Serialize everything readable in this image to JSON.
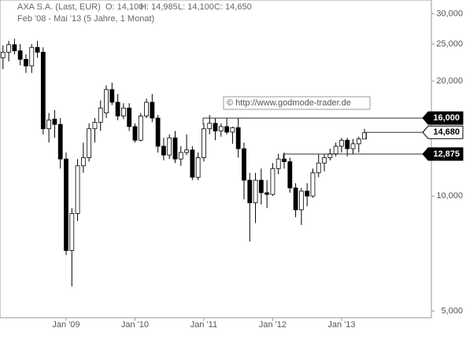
{
  "chart_data": {
    "type": "candlestick",
    "title": "AXA S.A. (Last, EUR)",
    "header_values": [
      "O: 14,100",
      "H: 14,985",
      "L: 14,100",
      "C: 14,650"
    ],
    "subtitle": "Feb '08 - Mai '13 (5 Jahre, 1 Monat)",
    "watermark": "© http://www.godmode-trader.de",
    "categories": [
      null,
      null,
      null,
      null,
      null,
      null,
      null,
      null,
      null,
      null,
      null,
      "Jan '09",
      null,
      null,
      null,
      null,
      null,
      null,
      null,
      null,
      null,
      null,
      null,
      "Jan '10",
      null,
      null,
      null,
      null,
      null,
      null,
      null,
      null,
      null,
      null,
      null,
      "Jan '11",
      null,
      null,
      null,
      null,
      null,
      null,
      null,
      null,
      null,
      null,
      null,
      "Jan '12",
      null,
      null,
      null,
      null,
      null,
      null,
      null,
      null,
      null,
      null,
      null,
      "Jan '13",
      null,
      null,
      null,
      null
    ],
    "open": [
      23000,
      23800,
      24900,
      24000,
      22800,
      21900,
      24500,
      23800,
      15000,
      15900,
      15400,
      12500,
      7200,
      9000,
      12000,
      12600,
      15000,
      15600,
      16500,
      19000,
      17600,
      16200,
      17000,
      15200,
      14000,
      16200,
      17600,
      16000,
      13500,
      12800,
      14200,
      12500,
      13000,
      13200,
      11200,
      12600,
      15000,
      15500,
      14800,
      15200,
      14700,
      15100,
      13300,
      11000,
      9600,
      11000,
      10200,
      10100,
      11800,
      12500,
      12300,
      10500,
      9200,
      10300,
      10000,
      11500,
      12200,
      12600,
      12900,
      13500,
      14000,
      13300,
      13700,
      14100
    ],
    "high": [
      24800,
      25500,
      25800,
      25000,
      23500,
      25000,
      25500,
      24500,
      16500,
      16800,
      16000,
      13000,
      9300,
      12500,
      13800,
      15500,
      16000,
      17800,
      19500,
      19800,
      18500,
      17500,
      17500,
      15500,
      16500,
      18000,
      18500,
      16300,
      14200,
      14500,
      14800,
      13500,
      14500,
      13500,
      13000,
      15500,
      16300,
      16000,
      15500,
      16000,
      15200,
      16000,
      13800,
      11500,
      11500,
      11800,
      11000,
      12200,
      12900,
      13000,
      12600,
      10800,
      10500,
      10800,
      11800,
      12900,
      12900,
      13300,
      13800,
      14200,
      14200,
      14100,
      14300,
      14985
    ],
    "low": [
      21500,
      22500,
      23500,
      22000,
      21000,
      21000,
      23000,
      14500,
      13800,
      14200,
      11800,
      7000,
      5800,
      8600,
      11500,
      12300,
      13800,
      14800,
      16000,
      17300,
      15800,
      15900,
      14800,
      13800,
      13900,
      16000,
      15600,
      13000,
      12400,
      12500,
      12200,
      12000,
      12800,
      11000,
      11000,
      12300,
      14500,
      14000,
      14300,
      14500,
      13700,
      12600,
      9800,
      7600,
      8500,
      9500,
      9300,
      10000,
      11400,
      11800,
      10200,
      8800,
      8400,
      9400,
      9900,
      11200,
      11600,
      12400,
      12700,
      13000,
      12700,
      12900,
      13000,
      14100
    ],
    "close": [
      23800,
      24900,
      24000,
      22800,
      21900,
      24500,
      23800,
      15000,
      15800,
      15400,
      12500,
      7200,
      9000,
      12000,
      12600,
      15000,
      15600,
      17000,
      19000,
      17600,
      16200,
      17000,
      15200,
      14000,
      16200,
      17600,
      16000,
      13500,
      12800,
      14200,
      12500,
      13000,
      13200,
      11200,
      12600,
      15000,
      15500,
      14800,
      15200,
      14700,
      15100,
      13300,
      11000,
      9600,
      11000,
      10200,
      10100,
      11800,
      12500,
      12300,
      10500,
      9200,
      10300,
      10000,
      11500,
      12200,
      12600,
      12900,
      13500,
      14000,
      13300,
      13700,
      14100,
      14650
    ],
    "up_color": "#ffffff",
    "down_color": "#000000",
    "log_scale": true,
    "ylim": [
      4800,
      32600
    ],
    "yticks": [
      {
        "value": 5000,
        "label": "5,000"
      },
      {
        "value": 10000,
        "label": "10,000"
      },
      {
        "value": 20000,
        "label": "20,000"
      },
      {
        "value": 25000,
        "label": "25,000"
      },
      {
        "value": 30000,
        "label": "30,000"
      }
    ],
    "levels": [
      {
        "value": 16000,
        "label": "16,000",
        "color": "#000000"
      },
      {
        "value": 14680,
        "label": "14,680",
        "color": "#ffffff"
      },
      {
        "value": 12875,
        "label": "12,875",
        "color": "#000000"
      }
    ]
  }
}
